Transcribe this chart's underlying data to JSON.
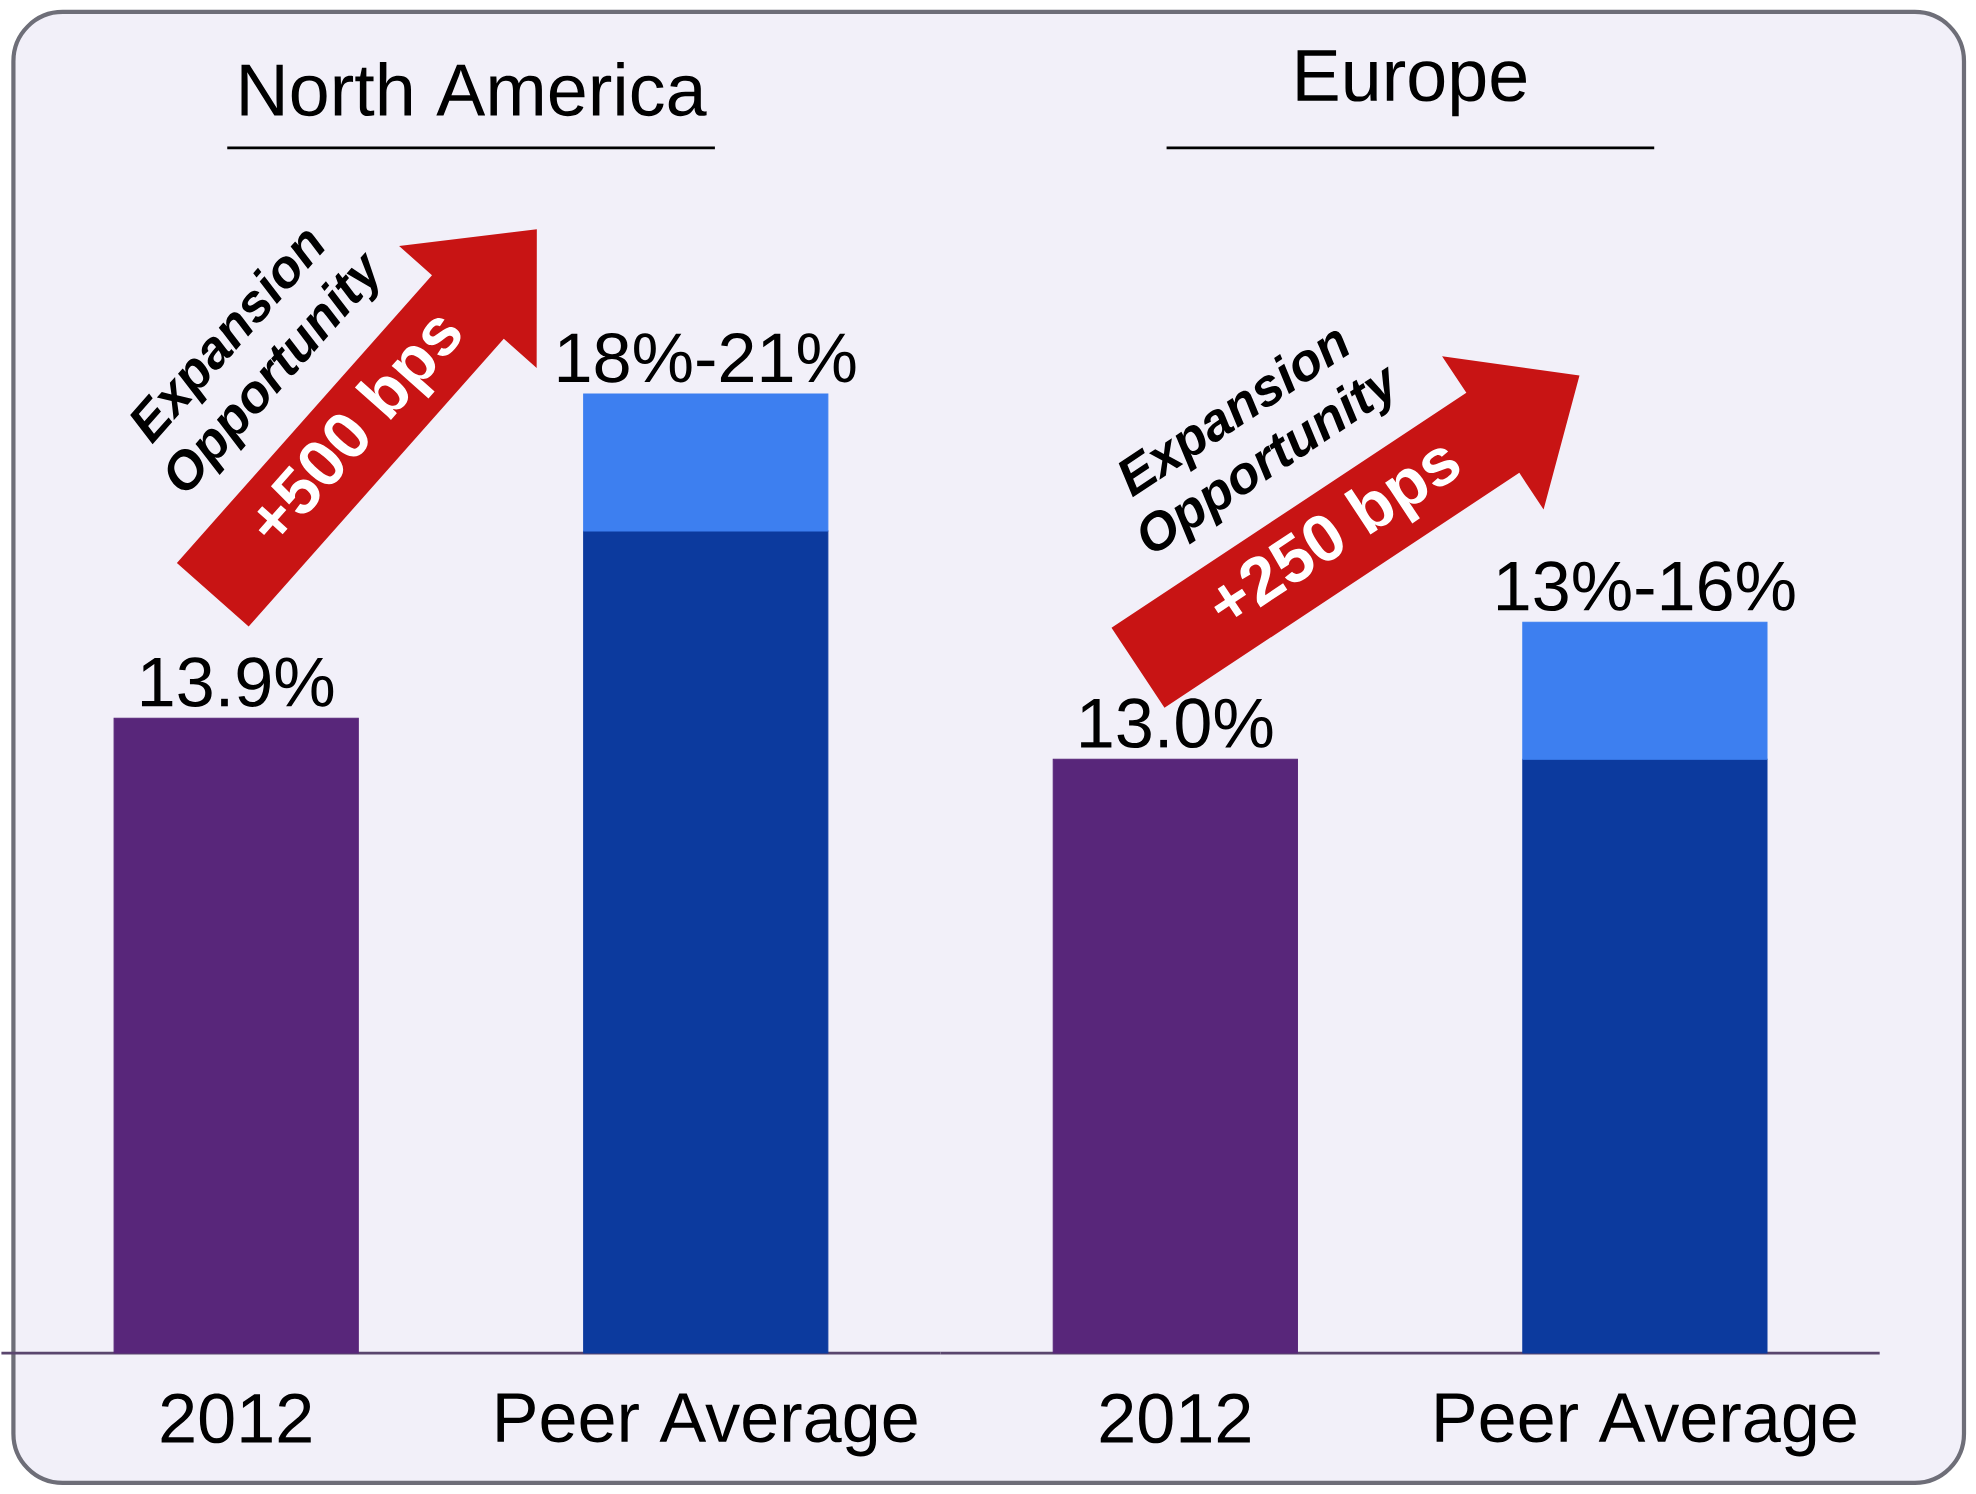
{
  "chart_data": [
    {
      "type": "bar",
      "title": "North America",
      "categories": [
        "2012",
        "Peer Average"
      ],
      "stacked": true,
      "series": [
        {
          "colors": [
            "#58267a",
            "#0c3a9e"
          ],
          "values": [
            13.9,
            18
          ],
          "value_labels": [
            "13.9%",
            "18%-21%"
          ]
        },
        {
          "color": "#3d7ff0",
          "values": [
            null,
            3
          ]
        }
      ],
      "annotations": [
        "Expansion Opportunity",
        "+500 bps"
      ]
    },
    {
      "type": "bar",
      "title": "Europe",
      "categories": [
        "2012",
        "Peer Average"
      ],
      "stacked": true,
      "series": [
        {
          "colors": [
            "#58267a",
            "#0c3a9e"
          ],
          "values": [
            13.0,
            13
          ],
          "value_labels": [
            "13.0%",
            "13%-16%"
          ]
        },
        {
          "color": "#3d7ff0",
          "values": [
            null,
            3
          ]
        }
      ],
      "annotations": [
        "Expansion Opportunity",
        "+250 bps"
      ]
    }
  ]
}
